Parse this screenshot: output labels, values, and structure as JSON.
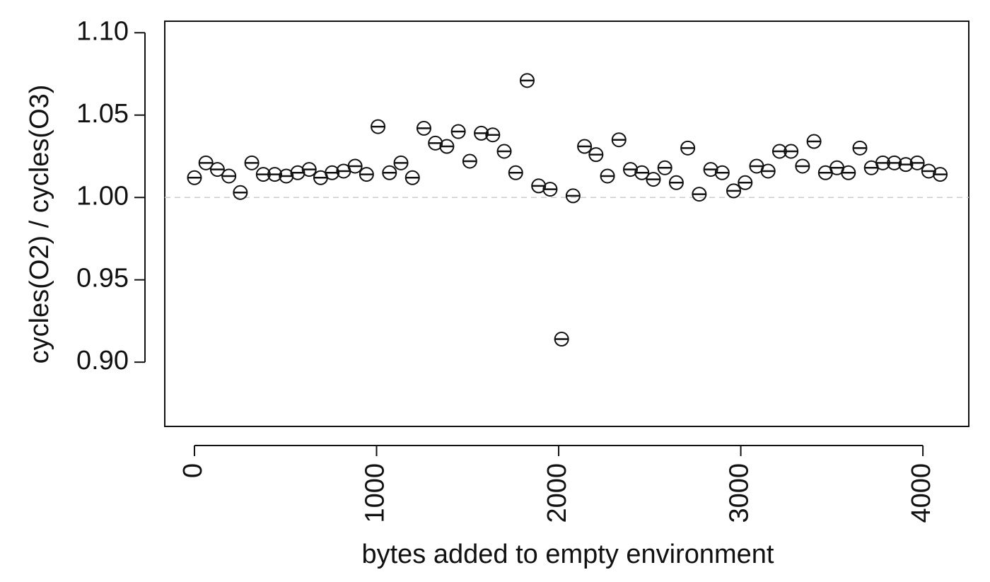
{
  "chart_data": {
    "type": "scatter",
    "x_label": "bytes added to empty environment",
    "y_label": "cycles(O2) / cycles(O3)",
    "x": [
      0,
      63,
      126,
      189,
      252,
      315,
      378,
      441,
      504,
      567,
      630,
      693,
      756,
      819,
      882,
      945,
      1008,
      1071,
      1134,
      1197,
      1260,
      1323,
      1386,
      1449,
      1512,
      1575,
      1638,
      1701,
      1764,
      1827,
      1890,
      1953,
      2016,
      2079,
      2142,
      2205,
      2268,
      2331,
      2394,
      2457,
      2520,
      2583,
      2646,
      2709,
      2772,
      2835,
      2898,
      2961,
      3024,
      3087,
      3150,
      3213,
      3276,
      3339,
      3402,
      3465,
      3528,
      3591,
      3654,
      3717,
      3780,
      3843,
      3906,
      3969,
      4032,
      4095
    ],
    "values": [
      1.012,
      1.021,
      1.017,
      1.013,
      1.003,
      1.021,
      1.014,
      1.014,
      1.013,
      1.015,
      1.017,
      1.012,
      1.015,
      1.016,
      1.019,
      1.014,
      1.043,
      1.015,
      1.021,
      1.012,
      1.042,
      1.033,
      1.031,
      1.04,
      1.022,
      1.039,
      1.038,
      1.028,
      1.015,
      1.071,
      1.007,
      1.005,
      0.914,
      1.001,
      1.031,
      1.026,
      1.013,
      1.035,
      1.017,
      1.015,
      1.011,
      1.018,
      1.009,
      1.03,
      1.002,
      1.017,
      1.015,
      1.004,
      1.009,
      1.019,
      1.016,
      1.028,
      1.028,
      1.019,
      1.034,
      1.015,
      1.018,
      1.015,
      1.03,
      1.018,
      1.021,
      1.021,
      1.02,
      1.021,
      1.016,
      1.014
    ],
    "color": "#111111",
    "reference_line": 1,
    "xlim": [
      -163,
      4252
    ],
    "ylim": [
      0.861,
      1.107
    ],
    "xticks": [
      0,
      1000,
      2000,
      3000,
      4000
    ],
    "yticks": [
      {
        "value": 0.9,
        "label": "0.90"
      },
      {
        "value": 0.95,
        "label": "0.95"
      },
      {
        "value": 1.0,
        "label": "1.00"
      },
      {
        "value": 1.05,
        "label": "1.05"
      },
      {
        "value": 1.1,
        "label": "1.10"
      }
    ]
  }
}
